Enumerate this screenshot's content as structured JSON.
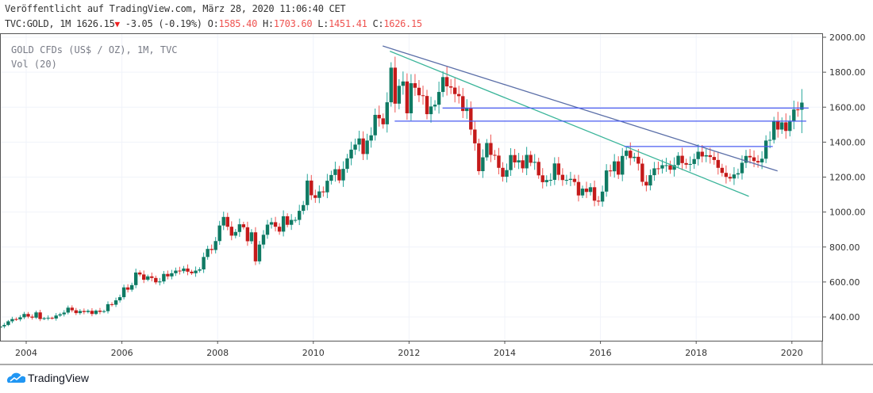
{
  "header": {
    "published": "Veröffentlicht auf TradingView.com, März 28, 2020 11:06:40 CET",
    "symbol": "TVC:GOLD, 1M 1626.15",
    "change": "-3.05 (-0.19%)",
    "o_label": "O:",
    "o": "1585.40",
    "h_label": "H:",
    "h": "1703.60",
    "l_label": "L:",
    "l": "1451.41",
    "c_label": "C:",
    "c": "1626.15"
  },
  "legend": {
    "title": "GOLD CFDs (US$ / OZ), 1M, TVC",
    "volume": "Vol (20)"
  },
  "footer": {
    "brand": "TradingView"
  },
  "colors": {
    "up": "#26a69a",
    "down": "#ef5350",
    "upBody": "#0f7a63",
    "downBody": "#c41a1a",
    "trend1": "#5b6fa8",
    "trend2": "#3bb59a",
    "hline": "#4a5cf0"
  },
  "chart_data": {
    "type": "candlestick",
    "title": "GOLD CFDs (US$ / OZ), 1M, TVC",
    "start": "2003-06",
    "interval": "1M",
    "closes": [
      346,
      354,
      375,
      388,
      386,
      398,
      417,
      402,
      396,
      426,
      388,
      393,
      395,
      391,
      408,
      415,
      425,
      453,
      438,
      422,
      434,
      428,
      435,
      417,
      436,
      429,
      433,
      473,
      470,
      495,
      513,
      569,
      556,
      582,
      654,
      643,
      613,
      632,
      623,
      598,
      603,
      646,
      632,
      650,
      665,
      662,
      677,
      659,
      650,
      665,
      672,
      743,
      789,
      783,
      834,
      923,
      972,
      916,
      865,
      886,
      930,
      913,
      833,
      884,
      718,
      814,
      870,
      928,
      942,
      916,
      888,
      976,
      927,
      955,
      955,
      1007,
      1040,
      1180,
      1096,
      1081,
      1118,
      1113,
      1179,
      1212,
      1245,
      1181,
      1247,
      1307,
      1357,
      1386,
      1421,
      1332,
      1409,
      1439,
      1556,
      1536,
      1502,
      1628,
      1826,
      1620,
      1722,
      1747,
      1565,
      1737,
      1711,
      1668,
      1664,
      1560,
      1604,
      1614,
      1687,
      1772,
      1719,
      1712,
      1675,
      1663,
      1578,
      1595,
      1472,
      1393,
      1234,
      1313,
      1395,
      1327,
      1323,
      1253,
      1202,
      1240,
      1326,
      1284,
      1296,
      1250,
      1327,
      1282,
      1287,
      1210,
      1171,
      1183,
      1184,
      1278,
      1213,
      1183,
      1184,
      1190,
      1172,
      1095,
      1134,
      1115,
      1142,
      1065,
      1060,
      1117,
      1238,
      1233,
      1290,
      1214,
      1321,
      1351,
      1309,
      1316,
      1277,
      1173,
      1152,
      1211,
      1250,
      1249,
      1268,
      1268,
      1242,
      1269,
      1322,
      1280,
      1271,
      1275,
      1303,
      1345,
      1318,
      1325,
      1315,
      1298,
      1253,
      1224,
      1201,
      1192,
      1215,
      1222,
      1282,
      1321,
      1313,
      1292,
      1284,
      1305,
      1409,
      1413,
      1520,
      1472,
      1513,
      1464,
      1517,
      1587,
      1585,
      1626
    ],
    "last_candle": {
      "open": 1585.4,
      "high": 1703.6,
      "low": 1451.41,
      "close": 1626.15
    },
    "ylim": [
      250,
      2040
    ],
    "yticks": [
      "400.00",
      "600.00",
      "800.00",
      "1000.00",
      "1200.00",
      "1400.00",
      "1600.00",
      "1800.00",
      "2000.00"
    ],
    "xticks": [
      "2004",
      "2006",
      "2008",
      "2010",
      "2012",
      "2014",
      "2016",
      "2018",
      "2020"
    ],
    "trendlines": [
      {
        "name": "descending-trendline-upper",
        "from": [
          2011.45,
          1950
        ],
        "to": [
          2019.7,
          1235
        ],
        "color": "trend1"
      },
      {
        "name": "descending-trendline-lower",
        "from": [
          2011.6,
          1920
        ],
        "to": [
          2019.1,
          1090
        ],
        "color": "trend2"
      }
    ],
    "hlines": [
      {
        "name": "resistance-1595",
        "price": 1595,
        "from": 2012.7,
        "to": 2020.35
      },
      {
        "name": "resistance-1520",
        "price": 1520,
        "from": 2011.7,
        "to": 2020.3
      },
      {
        "name": "resistance-1375",
        "price": 1375,
        "from": 2016.5,
        "to": 2019.6
      }
    ],
    "grid": true
  }
}
